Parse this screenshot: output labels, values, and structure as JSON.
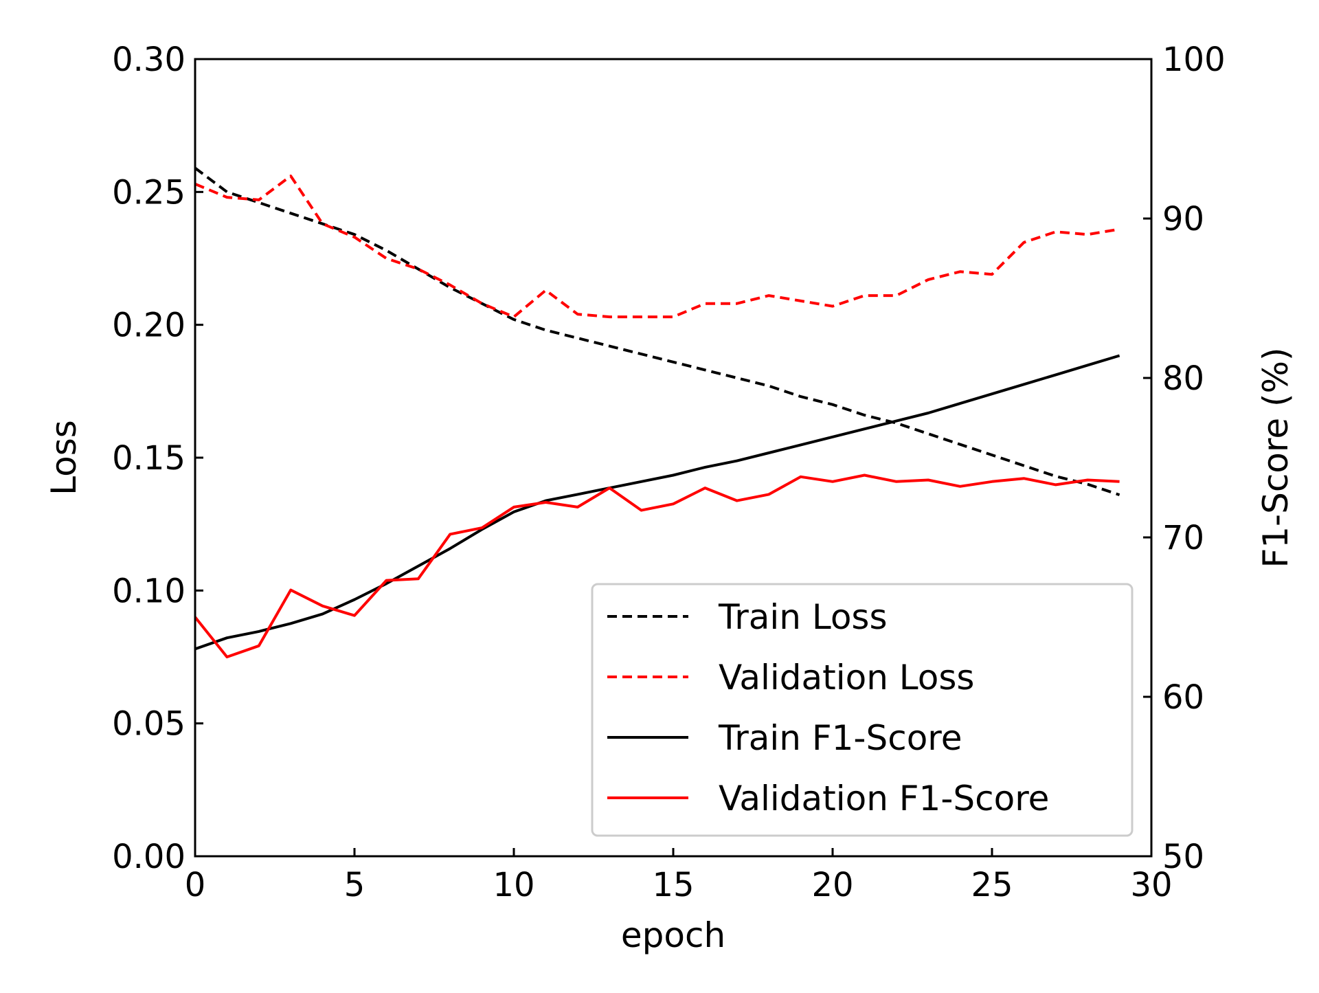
{
  "chart_data": {
    "type": "line",
    "title": "",
    "xlabel": "epoch",
    "ylabel_left": "Loss",
    "ylabel_right": "F1-Score (%)",
    "xlim": [
      0,
      30
    ],
    "ylim_left": [
      0,
      0.3
    ],
    "ylim_right": [
      50,
      100
    ],
    "x_ticks": [
      "0",
      "5",
      "10",
      "15",
      "20",
      "25",
      "30"
    ],
    "y_left_ticks": [
      "0.00",
      "0.05",
      "0.10",
      "0.15",
      "0.20",
      "0.25",
      "0.30"
    ],
    "y_right_ticks": [
      "50",
      "60",
      "70",
      "80",
      "90",
      "100"
    ],
    "grid": false,
    "legend_position": "lower-right",
    "x": [
      0,
      1,
      2,
      3,
      4,
      5,
      6,
      7,
      8,
      9,
      10,
      11,
      12,
      13,
      14,
      15,
      16,
      17,
      18,
      19,
      20,
      21,
      22,
      23,
      24,
      25,
      26,
      27,
      28,
      29
    ],
    "series": [
      {
        "name": "Train Loss",
        "axis": "left",
        "color": "#000000",
        "style": "dashed",
        "values": [
          0.259,
          0.25,
          0.246,
          0.242,
          0.238,
          0.234,
          0.228,
          0.221,
          0.214,
          0.208,
          0.202,
          0.198,
          0.195,
          0.192,
          0.189,
          0.186,
          0.183,
          0.18,
          0.177,
          0.173,
          0.17,
          0.166,
          0.163,
          0.159,
          0.155,
          0.151,
          0.147,
          0.143,
          0.14,
          0.136
        ]
      },
      {
        "name": "Validation Loss",
        "axis": "left",
        "color": "#ff0000",
        "style": "dashed",
        "values": [
          0.253,
          0.248,
          0.247,
          0.256,
          0.238,
          0.233,
          0.225,
          0.221,
          0.215,
          0.208,
          0.203,
          0.213,
          0.204,
          0.203,
          0.203,
          0.203,
          0.208,
          0.208,
          0.211,
          0.209,
          0.207,
          0.211,
          0.211,
          0.217,
          0.22,
          0.219,
          0.231,
          0.235,
          0.234,
          0.236
        ]
      },
      {
        "name": "Train F1-Score",
        "axis": "right",
        "color": "#000000",
        "style": "solid",
        "values": [
          63.0,
          63.7,
          64.1,
          64.6,
          65.2,
          66.1,
          67.1,
          68.2,
          69.3,
          70.5,
          71.6,
          72.3,
          72.7,
          73.1,
          73.5,
          73.9,
          74.4,
          74.8,
          75.3,
          75.8,
          76.3,
          76.8,
          77.3,
          77.8,
          78.4,
          79.0,
          79.6,
          80.2,
          80.8,
          81.4
        ]
      },
      {
        "name": "Validation F1-Score",
        "axis": "right",
        "color": "#ff0000",
        "style": "solid",
        "values": [
          65.0,
          62.5,
          63.2,
          66.7,
          65.7,
          65.1,
          67.3,
          67.4,
          70.2,
          70.6,
          71.9,
          72.2,
          71.9,
          73.1,
          71.7,
          72.1,
          73.1,
          72.3,
          72.7,
          73.8,
          73.5,
          73.9,
          73.5,
          73.6,
          73.2,
          73.5,
          73.7,
          73.3,
          73.6,
          73.5
        ]
      }
    ]
  }
}
